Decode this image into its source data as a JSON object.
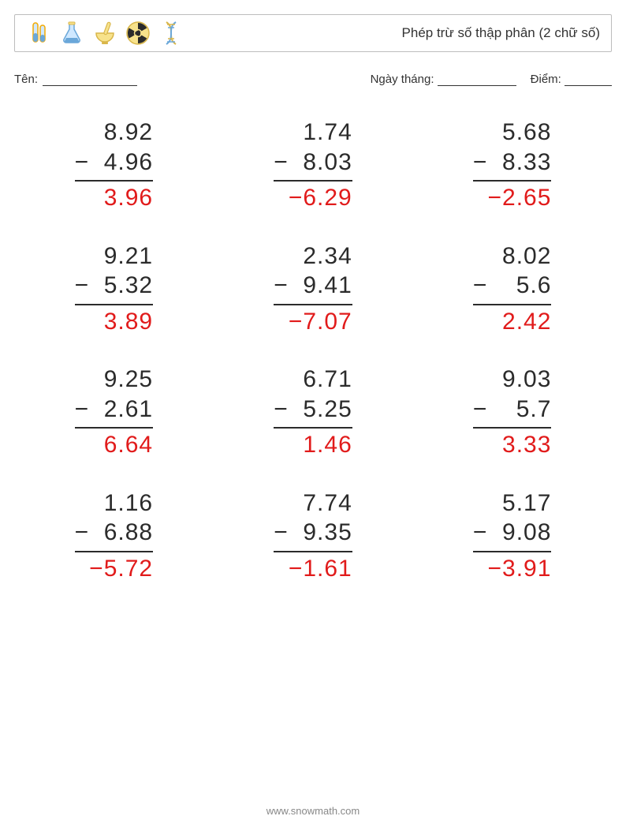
{
  "header": {
    "title": "Phép trừ số thập phân (2 chữ số)",
    "icons": [
      {
        "name": "test-tube-icon",
        "stroke": "#f2a900",
        "fill": "#cfe8ff"
      },
      {
        "name": "flask-icon",
        "stroke": "#6aa7d9",
        "fill": "#cfe8ff"
      },
      {
        "name": "mortar-icon",
        "stroke": "#d9b64a",
        "fill": "#f7e28b"
      },
      {
        "name": "radioactive-icon",
        "stroke": "#d9b64a",
        "fill": "#2b2b2b"
      },
      {
        "name": "dna-icon",
        "stroke": "#d9b64a",
        "fill": "#6aa7d9"
      }
    ]
  },
  "meta": {
    "name_label": "Tên:",
    "date_label": "Ngày tháng:",
    "score_label": "Điểm:"
  },
  "style": {
    "problem_fontsize": 30,
    "text_color": "#2b2b2b",
    "answer_color": "#e11b1b",
    "rule_color": "#2b2b2b",
    "background": "#ffffff",
    "grid_cols": 3,
    "grid_rows": 4
  },
  "operator": "−",
  "problems": [
    {
      "minuend": "8.92",
      "subtrahend": "4.96",
      "answer": "3.96"
    },
    {
      "minuend": "1.74",
      "subtrahend": "8.03",
      "answer": "−6.29"
    },
    {
      "minuend": "5.68",
      "subtrahend": "8.33",
      "answer": "−2.65"
    },
    {
      "minuend": "9.21",
      "subtrahend": "5.32",
      "answer": "3.89"
    },
    {
      "minuend": "2.34",
      "subtrahend": "9.41",
      "answer": "−7.07"
    },
    {
      "minuend": "8.02",
      "subtrahend": "5.6",
      "answer": "2.42"
    },
    {
      "minuend": "9.25",
      "subtrahend": "2.61",
      "answer": "6.64"
    },
    {
      "minuend": "6.71",
      "subtrahend": "5.25",
      "answer": "1.46"
    },
    {
      "minuend": "9.03",
      "subtrahend": "5.7",
      "answer": "3.33"
    },
    {
      "minuend": "1.16",
      "subtrahend": "6.88",
      "answer": "−5.72"
    },
    {
      "minuend": "7.74",
      "subtrahend": "9.35",
      "answer": "−1.61"
    },
    {
      "minuend": "5.17",
      "subtrahend": "9.08",
      "answer": "−3.91"
    }
  ],
  "footer": {
    "url": "www.snowmath.com"
  }
}
